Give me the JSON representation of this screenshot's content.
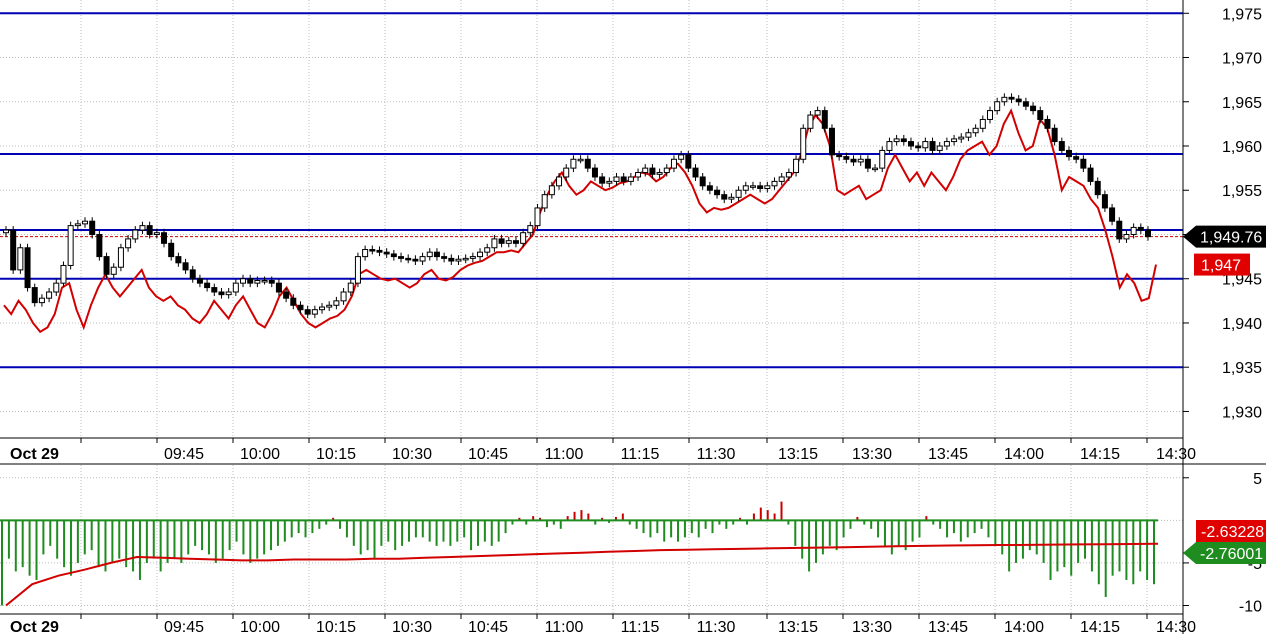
{
  "colors": {
    "grid": "#bdbdbd",
    "hline": "#0000b4",
    "price_line": "#d20000",
    "ind_pos": "#c80000",
    "ind_neg": "#1e8c1e",
    "ind_line": "#d20000",
    "last_tag": "#000000",
    "red_tag": "#e00000",
    "green_tag": "#1e8c1e"
  },
  "chart_data": [
    {
      "type": "candlestick",
      "ylim": [
        1927,
        1976.5
      ],
      "y_ticks": [
        "1,930",
        "1,935",
        "1,940",
        "1,945",
        "1,950",
        "1,955",
        "1,960",
        "1,965",
        "1,970",
        "1,975"
      ],
      "y_tick_values": [
        1930,
        1935,
        1940,
        1945,
        1950,
        1955,
        1960,
        1965,
        1970,
        1975
      ],
      "x_labels": [
        "Oct 29",
        "09:45",
        "10:00",
        "10:15",
        "10:30",
        "10:45",
        "11:00",
        "11:15",
        "11:30",
        "13:15",
        "13:30",
        "13:45",
        "14:00",
        "14:15",
        "14:30"
      ],
      "horizontal_lines": [
        1975,
        1959.1,
        1950.5,
        1945,
        1935
      ],
      "last_price_label": "1,949.76",
      "last_price": 1949.76,
      "red_label": "1,947",
      "red_value": 1946.6,
      "close_series": [
        1950.5,
        1946.0,
        1948.5,
        1944.0,
        1942.3,
        1942.8,
        1943.5,
        1944.5,
        1946.5,
        1951.0,
        1951.2,
        1951.5,
        1950.0,
        1947.5,
        1945.5,
        1946.3,
        1948.5,
        1949.5,
        1950.5,
        1951.0,
        1950.0,
        1950.2,
        1949.0,
        1947.5,
        1946.8,
        1946.0,
        1945.0,
        1944.5,
        1944.0,
        1943.5,
        1943.2,
        1943.5,
        1944.5,
        1945.0,
        1944.5,
        1944.8,
        1944.8,
        1944.5,
        1943.5,
        1942.8,
        1942.0,
        1941.5,
        1941.0,
        1941.5,
        1941.8,
        1942.0,
        1942.5,
        1943.5,
        1944.5,
        1947.5,
        1948.3,
        1948.2,
        1948.0,
        1947.8,
        1947.5,
        1947.3,
        1947.2,
        1947.0,
        1947.5,
        1948.0,
        1947.5,
        1947.3,
        1947.0,
        1947.2,
        1947.3,
        1947.5,
        1948.0,
        1948.5,
        1949.5,
        1949.0,
        1949.3,
        1949.0,
        1950.2,
        1951.0,
        1953.0,
        1954.5,
        1955.5,
        1956.5,
        1957.5,
        1958.5,
        1958.5,
        1957.5,
        1956.5,
        1955.8,
        1956.0,
        1956.5,
        1956.0,
        1956.5,
        1957.0,
        1957.5,
        1956.8,
        1957.0,
        1957.5,
        1958.5,
        1959.0,
        1957.5,
        1956.5,
        1955.5,
        1955.0,
        1954.5,
        1954.0,
        1954.2,
        1955.0,
        1955.5,
        1955.5,
        1955.2,
        1955.5,
        1956.0,
        1956.5,
        1957.0,
        1958.5,
        1962.0,
        1963.5,
        1964.0,
        1962.0,
        1959.0,
        1958.8,
        1958.5,
        1958.2,
        1958.5,
        1957.5,
        1957.5,
        1959.5,
        1960.5,
        1960.8,
        1960.5,
        1960.0,
        1959.8,
        1960.5,
        1959.5,
        1960.0,
        1960.5,
        1960.8,
        1961.0,
        1961.5,
        1962.0,
        1963.0,
        1964.0,
        1965.0,
        1965.5,
        1965.3,
        1965.0,
        1964.5,
        1964.0,
        1963.0,
        1962.0,
        1960.5,
        1959.5,
        1958.8,
        1958.5,
        1957.5,
        1956.0,
        1954.5,
        1953.0,
        1951.5,
        1949.5,
        1950.0,
        1950.8,
        1950.5,
        1949.76
      ],
      "red_line_series": [
        1942.0,
        1941.0,
        1942.5,
        1941.5,
        1940.0,
        1939.0,
        1939.5,
        1941.0,
        1944.0,
        1944.5,
        1941.5,
        1939.5,
        1942.0,
        1944.0,
        1945.5,
        1944.0,
        1943.0,
        1944.0,
        1945.0,
        1946.0,
        1944.0,
        1943.0,
        1942.5,
        1943.0,
        1942.0,
        1941.5,
        1940.5,
        1940.0,
        1941.0,
        1942.5,
        1941.5,
        1940.5,
        1942.0,
        1943.0,
        1941.5,
        1940.0,
        1939.5,
        1941.0,
        1943.0,
        1944.0,
        1942.5,
        1941.0,
        1940.0,
        1939.5,
        1940.0,
        1940.5,
        1940.8,
        1941.5,
        1943.0,
        1945.5,
        1946.0,
        1945.5,
        1945.0,
        1944.8,
        1945.0,
        1944.5,
        1944.0,
        1944.5,
        1945.5,
        1946.0,
        1945.0,
        1944.8,
        1945.2,
        1946.0,
        1946.5,
        1946.8,
        1947.0,
        1947.5,
        1948.0,
        1948.0,
        1948.2,
        1948.0,
        1949.0,
        1950.0,
        1952.5,
        1954.5,
        1956.0,
        1957.0,
        1955.5,
        1954.5,
        1955.0,
        1956.0,
        1955.5,
        1955.0,
        1955.3,
        1955.8,
        1956.0,
        1956.5,
        1957.0,
        1956.8,
        1956.0,
        1956.5,
        1957.5,
        1958.0,
        1957.0,
        1955.5,
        1953.5,
        1952.5,
        1953.0,
        1952.8,
        1953.0,
        1953.5,
        1954.0,
        1954.5,
        1954.0,
        1953.5,
        1954.0,
        1955.0,
        1956.0,
        1957.0,
        1959.0,
        1962.0,
        1963.5,
        1962.5,
        1960.0,
        1955.0,
        1954.5,
        1955.0,
        1955.5,
        1954.0,
        1954.5,
        1955.0,
        1957.5,
        1959.0,
        1957.5,
        1956.0,
        1957.0,
        1955.5,
        1957.0,
        1956.0,
        1955.0,
        1956.5,
        1958.5,
        1959.5,
        1960.0,
        1960.5,
        1959.0,
        1960.0,
        1962.5,
        1964.0,
        1961.5,
        1959.5,
        1960.0,
        1963.0,
        1962.0,
        1959.0,
        1955.0,
        1956.5,
        1956.0,
        1955.5,
        1954.0,
        1953.0,
        1950.5,
        1947.5,
        1944.0,
        1945.5,
        1944.5,
        1942.5,
        1942.8,
        1946.6
      ]
    },
    {
      "type": "bar",
      "ylim": [
        -11,
        6.5
      ],
      "y_ticks": [
        "5",
        "-5",
        "-10"
      ],
      "y_tick_values": [
        5,
        -5,
        -10
      ],
      "x_labels": [
        "Oct 29",
        "09:45",
        "10:00",
        "10:15",
        "10:30",
        "10:45",
        "11:00",
        "11:15",
        "11:30",
        "13:15",
        "13:30",
        "13:45",
        "14:00",
        "14:15",
        "14:30"
      ],
      "red_label": "-2.63228",
      "green_label": "-2.76001",
      "histogram": [
        -10.0,
        -4.5,
        -6.0,
        -5.5,
        -6.5,
        -7.0,
        -4.0,
        -3.0,
        -4.5,
        -5.5,
        -6.5,
        -5.0,
        -4.0,
        -3.5,
        -5.5,
        -6.0,
        -5.0,
        -4.5,
        -5.5,
        -6.0,
        -7.0,
        -5.0,
        -4.5,
        -6.0,
        -5.0,
        -4.5,
        -5.0,
        -4.0,
        -3.0,
        -3.5,
        -4.0,
        -5.0,
        -4.5,
        -3.5,
        -2.5,
        -4.0,
        -5.0,
        -4.5,
        -4.0,
        -3.5,
        -3.0,
        -2.5,
        -2.0,
        -1.5,
        -2.0,
        -1.5,
        -1.0,
        -0.5,
        0.3,
        -1.0,
        -2.0,
        -3.0,
        -4.0,
        -3.5,
        -4.5,
        -3.0,
        -2.5,
        -3.5,
        -3.0,
        -2.5,
        -2.0,
        -2.0,
        -2.5,
        -3.0,
        -2.5,
        -3.0,
        -2.5,
        -2.0,
        -3.5,
        -3.0,
        -2.5,
        -3.0,
        -2.5,
        -1.5,
        -0.5,
        0.3,
        -0.5,
        0.5,
        0.3,
        -0.8,
        -0.5,
        -1.0,
        0.5,
        1.0,
        1.2,
        0.8,
        -0.5,
        0.3,
        -0.3,
        0.4,
        0.8,
        -0.5,
        -1.0,
        -1.5,
        -2.0,
        -1.5,
        -2.5,
        -2.0,
        -2.5,
        -2.0,
        -1.5,
        -2.0,
        -1.0,
        -1.5,
        -0.5,
        -1.0,
        -0.5,
        0.3,
        -0.5,
        0.8,
        1.5,
        1.2,
        0.8,
        2.2,
        -0.5,
        -3.0,
        -4.5,
        -6.0,
        -5.0,
        -4.0,
        -3.0,
        -3.5,
        -2.0,
        -1.0,
        0.4,
        -0.5,
        -1.0,
        -2.0,
        -3.0,
        -4.0,
        -3.0,
        -3.5,
        -2.5,
        -2.0,
        0.5,
        -0.5,
        -1.0,
        -2.0,
        -1.5,
        -2.5,
        -2.0,
        -1.5,
        -1.0,
        -2.0,
        -3.0,
        -4.0,
        -6.0,
        -5.0,
        -4.5,
        -3.5,
        -4.0,
        -5.0,
        -7.0,
        -6.0,
        -5.5,
        -6.5,
        -5.0,
        -4.5,
        -6.0,
        -7.5,
        -9.0,
        -6.5,
        -6.0,
        -7.0,
        -7.5,
        -6.0,
        -7.0,
        -7.5
      ],
      "line_series": [
        -10.0,
        -7.5,
        -6.5,
        -5.8,
        -5.0,
        -4.3,
        -4.4,
        -4.5,
        -4.6,
        -4.7,
        -4.7,
        -4.6,
        -4.6,
        -4.6,
        -4.5,
        -4.5,
        -4.4,
        -4.3,
        -4.2,
        -4.1,
        -4.0,
        -3.9,
        -3.8,
        -3.7,
        -3.6,
        -3.5,
        -3.45,
        -3.4,
        -3.35,
        -3.3,
        -3.25,
        -3.2,
        -3.15,
        -3.1,
        -3.05,
        -3.0,
        -2.95,
        -2.92,
        -2.9,
        -2.88,
        -2.85,
        -2.83,
        -2.8,
        -2.78,
        -2.76
      ]
    }
  ]
}
